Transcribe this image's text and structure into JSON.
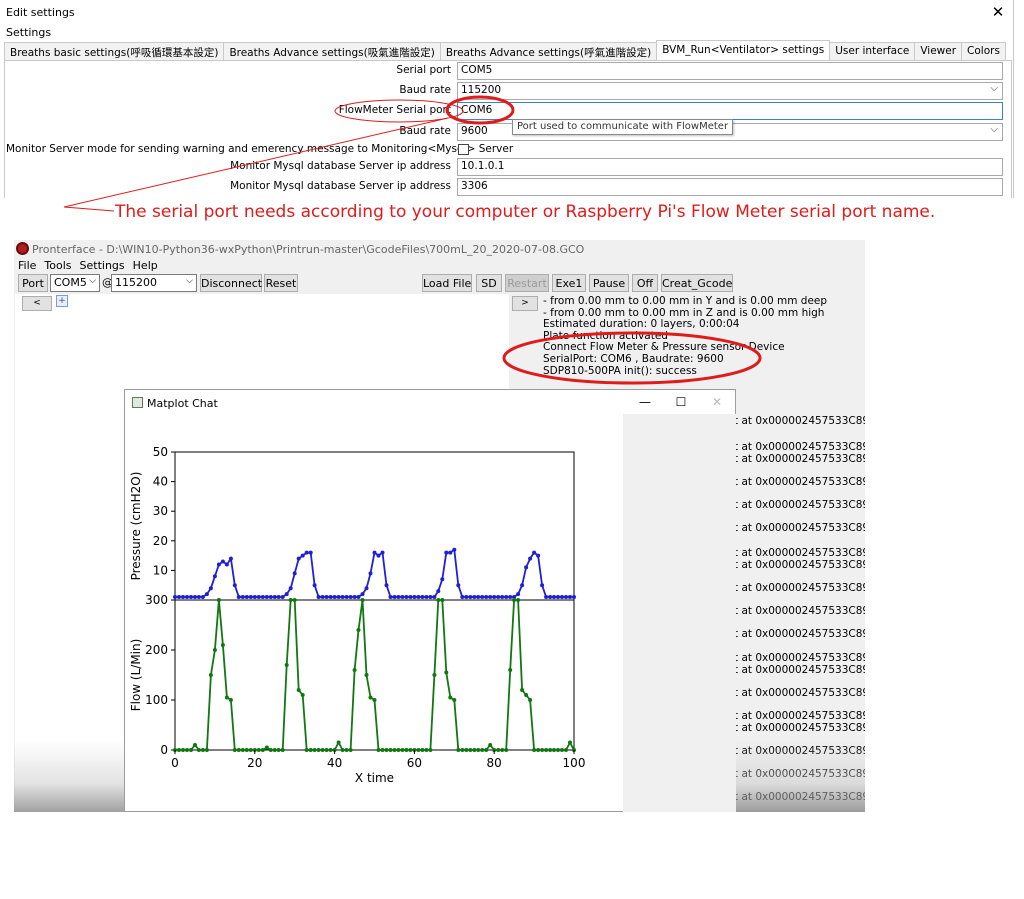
{
  "dialog": {
    "title": "Edit settings",
    "close": "✕",
    "subtitle": "Settings",
    "tabs": [
      "Breaths basic settings(呼吸循環基本設定)",
      "Breaths Advance settings(吸氣進階設定)",
      "Breaths Advance settings(呼氣進階設定)",
      "BVM_Run<Ventilator> settings",
      "User interface",
      "Viewer",
      "Colors"
    ],
    "fields": {
      "serial_port_label": "Serial port",
      "serial_port_value": "COM5",
      "baud_rate_label": "Baud rate",
      "baud_rate_value": "115200",
      "flowmeter_label": "FlowMeter Serial port",
      "flowmeter_value": "COM6",
      "baud_rate2_label": "Baud rate",
      "baud_rate2_value": "9600",
      "monitor_label": "Monitor Server mode for sending warning and emerency message to Monitoring<Mysql> Server",
      "mysql_ip_label": "Monitor Mysql database Server ip address",
      "mysql_ip_value": "10.1.0.1",
      "mysql_port_label": "Monitor Mysql database Server ip address",
      "mysql_port_value": "3306"
    },
    "tooltip": "Port used to communicate with FlowMeter",
    "dropdown_glyph": "⌵"
  },
  "annotation": "The serial port needs according to your computer or Raspberry Pi's Flow Meter serial port name.",
  "pronterface": {
    "title": "Pronterface - D:\\WIN10-Python36-wxPython\\Printrun-master\\GcodeFiles\\700mL_20_2020-07-08.GCO",
    "menu": [
      "File",
      "Tools",
      "Settings",
      "Help"
    ],
    "toolbar": {
      "port_btn": "Port",
      "port_value": "COM5",
      "at": "@",
      "baud_value": "115200",
      "disconnect": "Disconnect",
      "reset": "Reset",
      "load_file": "Load File",
      "sd": "SD",
      "restart": "Restart",
      "exe1": "Exe1",
      "pause": "Pause",
      "off": "Off",
      "creat_gcode": "Creat_Gcode",
      "left_arrow": "<",
      "plus": "+",
      "right_arrow": ">"
    },
    "log": [
      "- from 0.00 mm to 0.00 mm in Y and is 0.00 mm deep",
      "- from 0.00 mm to 0.00 mm in Z and is 0.00 mm high",
      "Estimated duration: 0 layers, 0:00:04",
      "Plate function activated",
      "Connect Flow Meter & Pressure sensor Device",
      "SerialPort: COM6 , Baudrate: 9600",
      "SDP810-500PA init(): success"
    ],
    "addr_text": "t at 0x000002457533C898>"
  },
  "matplot": {
    "title": "Matplot Chat",
    "minimize": "—",
    "maximize": "☐",
    "close": "✕"
  },
  "colors": {
    "annotation_red": "#e01b1b",
    "pressure_blue": "#1f1fd6",
    "flow_green": "#117711"
  },
  "chart_data": [
    {
      "type": "line",
      "title": "",
      "xlabel": "",
      "ylabel": "Pressure (cmH2O)",
      "xlim": [
        0,
        100
      ],
      "ylim": [
        0,
        50
      ],
      "yticks": [
        10,
        20,
        30,
        40,
        50
      ],
      "series": [
        {
          "x": [
            0,
            1,
            2,
            3,
            4,
            5,
            6,
            7,
            8,
            9,
            10,
            11,
            12,
            13,
            14,
            15,
            16,
            17,
            18,
            19,
            20,
            21,
            22,
            23,
            24,
            25,
            26,
            27,
            28,
            29,
            30,
            31,
            32,
            33,
            34,
            35,
            36,
            37,
            38,
            39,
            40,
            41,
            42,
            43,
            44,
            45,
            46,
            47,
            48,
            49,
            50,
            51,
            52,
            53,
            54,
            55,
            56,
            57,
            58,
            59,
            60,
            61,
            62,
            63,
            64,
            65,
            66,
            67,
            68,
            69,
            70,
            71,
            72,
            73,
            74,
            75,
            76,
            77,
            78,
            79,
            80,
            81,
            82,
            83,
            84,
            85,
            86,
            87,
            88,
            89,
            90,
            91,
            92,
            93,
            94,
            95,
            96,
            97,
            98,
            99,
            100
          ],
          "y": [
            1,
            1,
            1,
            1,
            1,
            1,
            1,
            1,
            2,
            4,
            8,
            12,
            13,
            12,
            14,
            5,
            1,
            1,
            1,
            1,
            1,
            1,
            1,
            1,
            1,
            1,
            1,
            1,
            2,
            4,
            9,
            14,
            15,
            16,
            16,
            5,
            1,
            1,
            1,
            1,
            1,
            1,
            1,
            1,
            1,
            1,
            1,
            2,
            4,
            9,
            16,
            15,
            16,
            5,
            1,
            1,
            1,
            1,
            1,
            1,
            1,
            1,
            1,
            1,
            1,
            1,
            3,
            7,
            16,
            16,
            17,
            5,
            1,
            1,
            1,
            1,
            1,
            1,
            1,
            1,
            1,
            1,
            1,
            1,
            1,
            1,
            2,
            5,
            11,
            14,
            16,
            15,
            5,
            1,
            1,
            1,
            1,
            1,
            1,
            1,
            1
          ]
        }
      ]
    },
    {
      "type": "line",
      "title": "",
      "xlabel": "X time",
      "ylabel": "Flow (L/Min)",
      "xlim": [
        0,
        100
      ],
      "ylim": [
        0,
        300
      ],
      "xticks": [
        0,
        20,
        40,
        60,
        80,
        100
      ],
      "yticks": [
        0,
        100,
        200,
        300
      ],
      "series": [
        {
          "x": [
            0,
            1,
            2,
            3,
            4,
            5,
            6,
            7,
            8,
            9,
            10,
            11,
            12,
            13,
            14,
            15,
            16,
            17,
            18,
            19,
            20,
            21,
            22,
            23,
            24,
            25,
            26,
            27,
            28,
            29,
            30,
            31,
            32,
            33,
            34,
            35,
            36,
            37,
            38,
            39,
            40,
            41,
            42,
            43,
            44,
            45,
            46,
            47,
            48,
            49,
            50,
            51,
            52,
            53,
            54,
            55,
            56,
            57,
            58,
            59,
            60,
            61,
            62,
            63,
            64,
            65,
            66,
            67,
            68,
            69,
            70,
            71,
            72,
            73,
            74,
            75,
            76,
            77,
            78,
            79,
            80,
            81,
            82,
            83,
            84,
            85,
            86,
            87,
            88,
            89,
            90,
            91,
            92,
            93,
            94,
            95,
            96,
            97,
            98,
            99,
            100
          ],
          "y": [
            0,
            0,
            0,
            0,
            0,
            10,
            0,
            0,
            0,
            150,
            200,
            300,
            210,
            105,
            100,
            0,
            0,
            0,
            0,
            0,
            0,
            0,
            0,
            5,
            0,
            0,
            0,
            0,
            170,
            300,
            300,
            120,
            110,
            0,
            0,
            0,
            0,
            0,
            0,
            0,
            0,
            15,
            0,
            0,
            0,
            160,
            240,
            300,
            150,
            105,
            100,
            0,
            0,
            0,
            0,
            0,
            0,
            0,
            0,
            0,
            0,
            0,
            0,
            0,
            0,
            150,
            300,
            300,
            155,
            105,
            100,
            0,
            0,
            0,
            0,
            0,
            0,
            0,
            0,
            10,
            0,
            0,
            0,
            0,
            160,
            300,
            300,
            120,
            110,
            100,
            0,
            0,
            0,
            0,
            0,
            0,
            0,
            0,
            0,
            15,
            0
          ]
        }
      ]
    }
  ]
}
